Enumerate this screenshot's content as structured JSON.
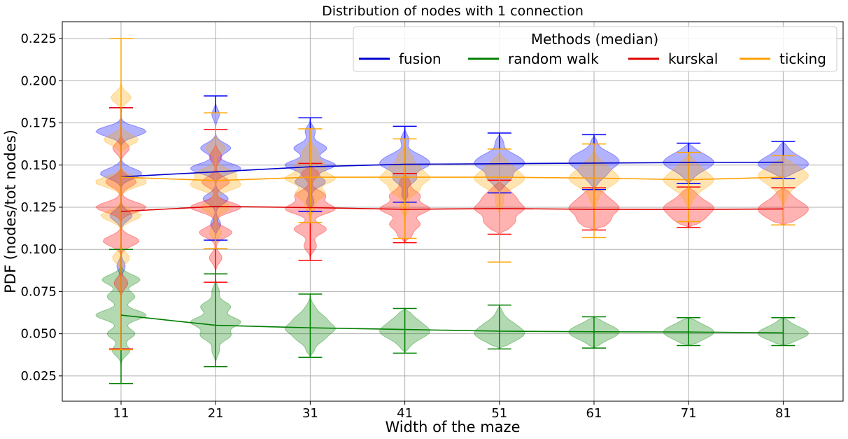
{
  "chart_data": {
    "type": "violin",
    "title": "Distribution of nodes with 1 connection",
    "xlabel": "Width of the maze",
    "ylabel": "PDF (nodes/tot nodes)",
    "categories": [
      "11",
      "21",
      "31",
      "41",
      "51",
      "61",
      "71",
      "81"
    ],
    "ylim": [
      0.01,
      0.235
    ],
    "yticks": [
      "0.025",
      "0.050",
      "0.075",
      "0.100",
      "0.125",
      "0.150",
      "0.175",
      "0.200",
      "0.225"
    ],
    "grid": true,
    "legend": {
      "title": "Methods (median)",
      "placement": "top-right",
      "columns": 4
    },
    "series": [
      {
        "name": "fusion",
        "color": "#0000ff",
        "median_line": "#0000cc",
        "min": [
          0.041,
          0.1055,
          0.1225,
          0.128,
          0.1335,
          0.1355,
          0.139,
          0.142
        ],
        "max": [
          0.184,
          0.191,
          0.178,
          0.173,
          0.169,
          0.168,
          0.163,
          0.164
        ],
        "median": [
          0.143,
          0.146,
          0.149,
          0.1505,
          0.1508,
          0.1512,
          0.1515,
          0.1517
        ],
        "modes": [
          [
            [
              0.205,
              0.15
            ],
            [
              0.17,
              0.9
            ],
            [
              0.145,
              0.75
            ],
            [
              0.12,
              0.4
            ],
            [
              0.09,
              0.15
            ]
          ],
          [
            [
              0.18,
              0.15
            ],
            [
              0.16,
              0.6
            ],
            [
              0.148,
              1.0
            ],
            [
              0.13,
              0.5
            ],
            [
              0.115,
              0.2
            ]
          ],
          [
            [
              0.17,
              0.2
            ],
            [
              0.16,
              0.65
            ],
            [
              0.15,
              1.0
            ],
            [
              0.14,
              0.6
            ],
            [
              0.128,
              0.15
            ]
          ],
          [
            [
              0.165,
              0.2
            ],
            [
              0.155,
              0.65
            ],
            [
              0.15,
              1.0
            ],
            [
              0.142,
              0.55
            ],
            [
              0.132,
              0.15
            ]
          ],
          [
            [
              0.163,
              0.2
            ],
            [
              0.155,
              0.7
            ],
            [
              0.15,
              1.0
            ],
            [
              0.143,
              0.55
            ],
            [
              0.138,
              0.15
            ]
          ],
          [
            [
              0.163,
              0.15
            ],
            [
              0.156,
              0.75
            ],
            [
              0.151,
              1.0
            ],
            [
              0.145,
              0.55
            ],
            [
              0.14,
              0.15
            ]
          ],
          [
            [
              0.159,
              0.2
            ],
            [
              0.155,
              0.7
            ],
            [
              0.151,
              1.0
            ],
            [
              0.147,
              0.5
            ],
            [
              0.142,
              0.15
            ]
          ],
          [
            [
              0.16,
              0.2
            ],
            [
              0.155,
              0.6
            ],
            [
              0.151,
              1.0
            ],
            [
              0.148,
              0.6
            ],
            [
              0.145,
              0.15
            ]
          ]
        ]
      },
      {
        "name": "random walk",
        "color": "#008000",
        "median_line": "#007f00",
        "min": [
          0.0205,
          0.0305,
          0.036,
          0.0385,
          0.041,
          0.0415,
          0.043,
          0.043
        ],
        "max": [
          0.1,
          0.0855,
          0.0735,
          0.065,
          0.067,
          0.06,
          0.0595,
          0.0595
        ],
        "median": [
          0.061,
          0.055,
          0.0535,
          0.0525,
          0.0515,
          0.0512,
          0.051,
          0.0505
        ],
        "modes": [
          [
            [
              0.082,
              0.75
            ],
            [
              0.072,
              0.55
            ],
            [
              0.061,
              1.0
            ],
            [
              0.05,
              0.55
            ],
            [
              0.04,
              0.35
            ]
          ],
          [
            [
              0.075,
              0.15
            ],
            [
              0.066,
              0.6
            ],
            [
              0.057,
              1.0
            ],
            [
              0.049,
              0.6
            ],
            [
              0.04,
              0.15
            ]
          ],
          [
            [
              0.065,
              0.2
            ],
            [
              0.059,
              0.6
            ],
            [
              0.053,
              1.0
            ],
            [
              0.047,
              0.55
            ],
            [
              0.04,
              0.15
            ]
          ],
          [
            [
              0.062,
              0.2
            ],
            [
              0.057,
              0.6
            ],
            [
              0.052,
              1.0
            ],
            [
              0.048,
              0.6
            ],
            [
              0.043,
              0.2
            ]
          ],
          [
            [
              0.062,
              0.15
            ],
            [
              0.056,
              0.6
            ],
            [
              0.051,
              1.0
            ],
            [
              0.047,
              0.6
            ],
            [
              0.044,
              0.15
            ]
          ],
          [
            [
              0.057,
              0.2
            ],
            [
              0.054,
              0.6
            ],
            [
              0.051,
              1.0
            ],
            [
              0.048,
              0.6
            ],
            [
              0.045,
              0.2
            ]
          ],
          [
            [
              0.057,
              0.2
            ],
            [
              0.054,
              0.55
            ],
            [
              0.051,
              1.0
            ],
            [
              0.048,
              0.55
            ],
            [
              0.045,
              0.2
            ]
          ],
          [
            [
              0.057,
              0.2
            ],
            [
              0.053,
              0.55
            ],
            [
              0.0505,
              1.0
            ],
            [
              0.048,
              0.6
            ],
            [
              0.046,
              0.2
            ]
          ]
        ]
      },
      {
        "name": "kurskal",
        "color": "#ff0000",
        "median_line": "#dd0000",
        "min": [
          0.041,
          0.0805,
          0.0935,
          0.104,
          0.109,
          0.1115,
          0.113,
          0.1145
        ],
        "max": [
          0.184,
          0.171,
          0.151,
          0.145,
          0.141,
          0.1365,
          0.137,
          0.1365
        ],
        "median": [
          0.1225,
          0.1255,
          0.1248,
          0.1238,
          0.1242,
          0.1238,
          0.1237,
          0.124
        ],
        "modes": [
          [
            [
              0.16,
              0.3
            ],
            [
              0.14,
              0.55
            ],
            [
              0.125,
              0.9
            ],
            [
              0.105,
              0.65
            ],
            [
              0.08,
              0.25
            ]
          ],
          [
            [
              0.155,
              0.25
            ],
            [
              0.14,
              0.55
            ],
            [
              0.125,
              1.0
            ],
            [
              0.11,
              0.65
            ],
            [
              0.095,
              0.25
            ]
          ],
          [
            [
              0.145,
              0.35
            ],
            [
              0.132,
              0.6
            ],
            [
              0.124,
              1.0
            ],
            [
              0.112,
              0.65
            ],
            [
              0.102,
              0.25
            ]
          ],
          [
            [
              0.14,
              0.2
            ],
            [
              0.132,
              0.6
            ],
            [
              0.124,
              1.0
            ],
            [
              0.115,
              0.6
            ],
            [
              0.108,
              0.25
            ]
          ],
          [
            [
              0.135,
              0.3
            ],
            [
              0.13,
              0.6
            ],
            [
              0.124,
              1.0
            ],
            [
              0.117,
              0.6
            ],
            [
              0.112,
              0.25
            ]
          ],
          [
            [
              0.134,
              0.3
            ],
            [
              0.129,
              0.6
            ],
            [
              0.124,
              1.0
            ],
            [
              0.118,
              0.6
            ],
            [
              0.114,
              0.3
            ]
          ],
          [
            [
              0.133,
              0.3
            ],
            [
              0.128,
              0.6
            ],
            [
              0.124,
              1.0
            ],
            [
              0.119,
              0.6
            ],
            [
              0.116,
              0.25
            ]
          ],
          [
            [
              0.133,
              0.3
            ],
            [
              0.128,
              0.6
            ],
            [
              0.124,
              1.0
            ],
            [
              0.12,
              0.6
            ],
            [
              0.117,
              0.25
            ]
          ]
        ]
      },
      {
        "name": "ticking",
        "color": "#ffa500",
        "median_line": "#ffa000",
        "min": [
          0.0405,
          0.1005,
          0.116,
          0.1065,
          0.0925,
          0.107,
          0.1165,
          0.1145
        ],
        "max": [
          0.225,
          0.181,
          0.1715,
          0.1655,
          0.1595,
          0.1625,
          0.1575,
          0.1555
        ],
        "median": [
          0.1428,
          0.1408,
          0.1428,
          0.1428,
          0.1428,
          0.1423,
          0.1413,
          0.1428
        ],
        "modes": [
          [
            [
              0.19,
              0.35
            ],
            [
              0.165,
              0.6
            ],
            [
              0.14,
              0.9
            ],
            [
              0.12,
              0.7
            ],
            [
              0.095,
              0.3
            ]
          ],
          [
            [
              0.16,
              0.4
            ],
            [
              0.145,
              0.8
            ],
            [
              0.138,
              1.0
            ],
            [
              0.125,
              0.6
            ],
            [
              0.11,
              0.25
            ]
          ],
          [
            [
              0.158,
              0.3
            ],
            [
              0.15,
              0.6
            ],
            [
              0.142,
              1.0
            ],
            [
              0.133,
              0.6
            ],
            [
              0.125,
              0.2
            ]
          ],
          [
            [
              0.155,
              0.3
            ],
            [
              0.148,
              0.6
            ],
            [
              0.142,
              1.0
            ],
            [
              0.135,
              0.6
            ],
            [
              0.125,
              0.2
            ]
          ],
          [
            [
              0.152,
              0.3
            ],
            [
              0.147,
              0.6
            ],
            [
              0.142,
              1.0
            ],
            [
              0.137,
              0.55
            ],
            [
              0.128,
              0.2
            ]
          ],
          [
            [
              0.152,
              0.3
            ],
            [
              0.147,
              0.6
            ],
            [
              0.142,
              1.0
            ],
            [
              0.137,
              0.55
            ],
            [
              0.13,
              0.2
            ]
          ],
          [
            [
              0.151,
              0.3
            ],
            [
              0.146,
              0.6
            ],
            [
              0.141,
              1.0
            ],
            [
              0.136,
              0.55
            ],
            [
              0.13,
              0.2
            ]
          ],
          [
            [
              0.151,
              0.3
            ],
            [
              0.147,
              0.6
            ],
            [
              0.143,
              1.0
            ],
            [
              0.138,
              0.55
            ],
            [
              0.132,
              0.2
            ]
          ]
        ]
      }
    ]
  }
}
